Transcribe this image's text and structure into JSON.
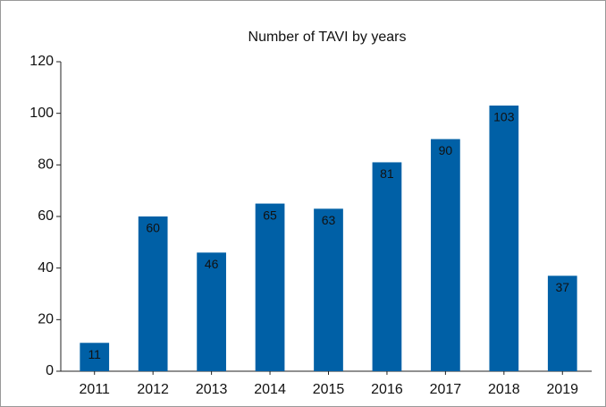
{
  "chart_data": {
    "type": "bar",
    "title": "Number of TAVI by years",
    "categories": [
      "2011",
      "2012",
      "2013",
      "2014",
      "2015",
      "2016",
      "2017",
      "2018",
      "2019"
    ],
    "values": [
      11,
      60,
      46,
      65,
      63,
      81,
      90,
      103,
      37
    ],
    "color": "#0060a6",
    "ylim": [
      0,
      120
    ],
    "yticks": [
      0,
      20,
      40,
      60,
      80,
      100,
      120
    ],
    "grid": false
  }
}
